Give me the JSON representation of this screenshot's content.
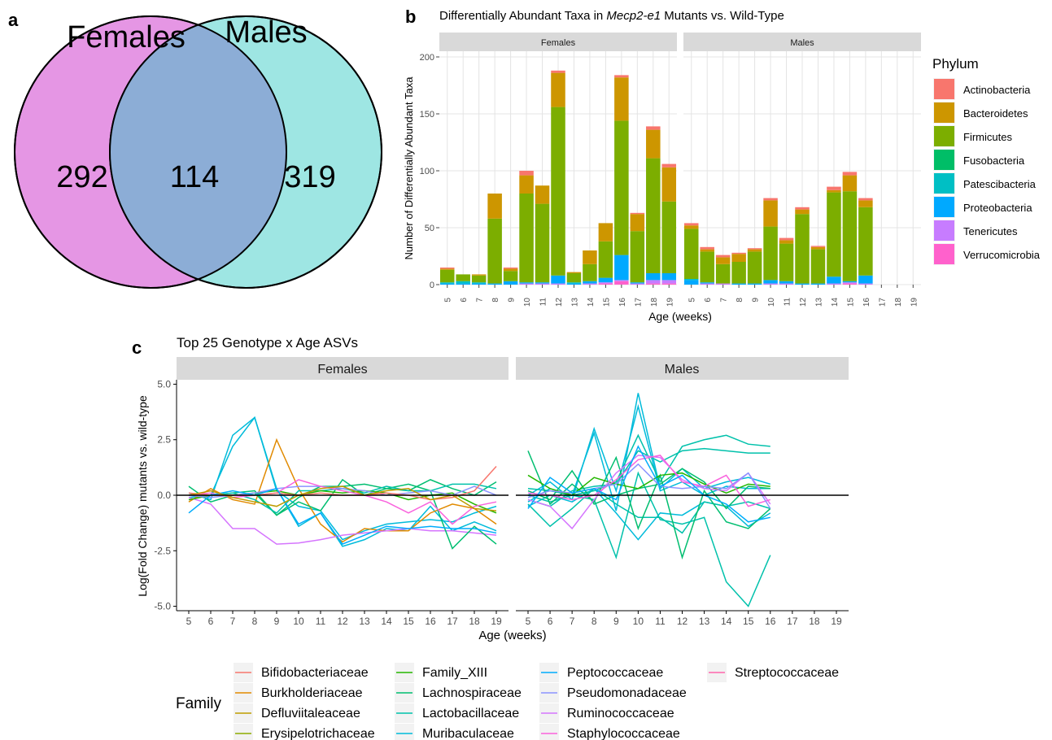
{
  "panel_labels": {
    "a": "a",
    "b": "b",
    "c": "c"
  },
  "colors": {
    "females_circle": "#e596e4",
    "males_circle": "#9ee6e3",
    "overlap": "#8cadd6",
    "strip_bg": "#d9d9d9",
    "grid": "#dedede",
    "Actinobacteria": "#f8766d",
    "Bacteroidetes": "#cd9600",
    "Firmicutes": "#7cae00",
    "Fusobacteria": "#00be67",
    "Patescibacteria": "#00bfc4",
    "Proteobacteria": "#00a9ff",
    "Tenericutes": "#c77cff",
    "Verrucomicrobia": "#ff61cc",
    "Bifidobacteriaceae": "#f8766d",
    "Burkholderiaceae": "#e18a00",
    "Defluviitaleaceae": "#be9c00",
    "Erysipelotrichaceae": "#8cab00",
    "Family_XIII": "#24b700",
    "Lachnospiraceae": "#00be70",
    "Lactobacillaceae": "#00c1ab",
    "Muribaculaceae": "#00bbda",
    "Peptococcaceae": "#00acfc",
    "Pseudomonadaceae": "#8b93ff",
    "Ruminococcaceae": "#d575fe",
    "Staphylococcaceae": "#f962dd",
    "Streptococcaceae": "#ff65ac"
  },
  "venn": {
    "females_label": "Females",
    "males_label": "Males",
    "females_only": "292",
    "overlap": "114",
    "males_only": "319"
  },
  "panel_b": {
    "title_pre": "Differentially Abundant Taxa in ",
    "title_italic": "Mecp2-e1",
    "title_post": " Mutants vs. Wild-Type",
    "ylabel": "Number of Differentially Abundant Taxa",
    "xlabel": "Age (weeks)",
    "facets": [
      "Females",
      "Males"
    ],
    "legend_title": "Phylum",
    "phyla": [
      "Actinobacteria",
      "Bacteroidetes",
      "Firmicutes",
      "Fusobacteria",
      "Patescibacteria",
      "Proteobacteria",
      "Tenericutes",
      "Verrucomicrobia"
    ]
  },
  "panel_c": {
    "title": "Top 25 Genotype x Age ASVs",
    "ylabel": "Log(Fold Change) mutants vs. wild-type",
    "xlabel": "Age (weeks)",
    "facets": [
      "Females",
      "Males"
    ],
    "legend_title": "Family",
    "families": [
      [
        "Bifidobacteriaceae",
        "Burkholderiaceae",
        "Defluviitaleaceae",
        "Erysipelotrichaceae"
      ],
      [
        "Family_XIII",
        "Lachnospiraceae",
        "Lactobacillaceae",
        "Muribaculaceae"
      ],
      [
        "Peptococcaceae",
        "Pseudomonadaceae",
        "Ruminococcaceae",
        "Staphylococcaceae"
      ],
      [
        "Streptococcaceae"
      ]
    ]
  },
  "chart_data": [
    {
      "type": "venn",
      "sets": [
        "Females",
        "Males"
      ],
      "values": {
        "Females only": 292,
        "Both": 114,
        "Males only": 319
      }
    },
    {
      "type": "bar",
      "stacked": true,
      "title": "Differentially Abundant Taxa in Mecp2-e1 Mutants vs. Wild-Type",
      "xlabel": "Age (weeks)",
      "ylabel": "Number of Differentially Abundant Taxa",
      "ylim": [
        0,
        205
      ],
      "yticks": [
        0,
        50,
        100,
        150,
        200
      ],
      "categories": [
        "5",
        "6",
        "7",
        "8",
        "9",
        "10",
        "11",
        "12",
        "13",
        "14",
        "15",
        "16",
        "17",
        "18",
        "19"
      ],
      "legend": "right",
      "facets": {
        "Females": {
          "Actinobacteria": [
            1,
            0,
            0,
            0,
            1,
            4,
            0,
            2,
            0,
            0,
            0,
            2,
            1,
            3,
            3
          ],
          "Bacteroidetes": [
            1,
            0,
            1,
            22,
            2,
            16,
            16,
            30,
            1,
            12,
            16,
            38,
            15,
            25,
            30
          ],
          "Firmicutes": [
            11,
            6,
            6,
            57,
            9,
            78,
            69,
            148,
            8,
            15,
            32,
            118,
            45,
            101,
            63
          ],
          "Fusobacteria": [
            0,
            0,
            0,
            0,
            0,
            0,
            0,
            0,
            0,
            0,
            0,
            0,
            0,
            0,
            0
          ],
          "Patescibacteria": [
            1,
            2,
            1,
            0,
            0,
            0,
            0,
            0,
            1,
            0,
            0,
            0,
            0,
            0,
            0
          ],
          "Proteobacteria": [
            1,
            1,
            1,
            1,
            3,
            1,
            1,
            7,
            1,
            2,
            4,
            22,
            1,
            6,
            6
          ],
          "Tenericutes": [
            0,
            0,
            0,
            0,
            0,
            1,
            1,
            1,
            0,
            1,
            1,
            1,
            1,
            3,
            3
          ],
          "Verrucomicrobia": [
            0,
            0,
            0,
            0,
            0,
            0,
            0,
            0,
            0,
            0,
            1,
            3,
            0,
            1,
            1
          ]
        },
        "Males": {
          "Actinobacteria": [
            2,
            2,
            2,
            1,
            1,
            2,
            2,
            2,
            1,
            3,
            3,
            2,
            0,
            0,
            0
          ],
          "Bacteroidetes": [
            3,
            2,
            6,
            7,
            2,
            23,
            3,
            4,
            2,
            2,
            14,
            6,
            0,
            0,
            0
          ],
          "Firmicutes": [
            44,
            27,
            17,
            19,
            28,
            47,
            33,
            61,
            30,
            74,
            79,
            60,
            0,
            0,
            0
          ],
          "Fusobacteria": [
            0,
            0,
            0,
            0,
            0,
            0,
            0,
            0,
            0,
            0,
            0,
            0,
            0,
            0,
            0
          ],
          "Patescibacteria": [
            1,
            0,
            0,
            0,
            0,
            0,
            0,
            0,
            0,
            0,
            0,
            0,
            0,
            0,
            0
          ],
          "Proteobacteria": [
            4,
            1,
            0,
            1,
            1,
            3,
            2,
            1,
            1,
            6,
            1,
            7,
            0,
            0,
            0
          ],
          "Tenericutes": [
            0,
            1,
            1,
            0,
            0,
            1,
            1,
            0,
            0,
            1,
            1,
            1,
            0,
            0,
            0
          ],
          "Verrucomicrobia": [
            0,
            0,
            0,
            0,
            0,
            0,
            0,
            0,
            0,
            0,
            1,
            0,
            0,
            0,
            0
          ]
        }
      }
    },
    {
      "type": "line",
      "title": "Top 25 Genotype x Age ASVs",
      "xlabel": "Age (weeks)",
      "ylabel": "Log(Fold Change) mutants vs. wild-type",
      "ylim": [
        -5.2,
        5.2
      ],
      "yticks": [
        -5.0,
        -2.5,
        0.0,
        2.5,
        5.0
      ],
      "x": [
        5,
        6,
        7,
        8,
        9,
        10,
        11,
        12,
        13,
        14,
        15,
        16,
        17,
        18,
        19
      ],
      "reference_line": 0,
      "legend": "bottom",
      "facets": {
        "Females": [
          {
            "family": "Muribaculaceae",
            "values": [
              0.1,
              -0.2,
              2.7,
              3.5,
              0.2,
              -0.5,
              -0.7,
              -2.0,
              -1.6,
              -1.3,
              -1.2,
              -1.1,
              -1.2,
              -0.8,
              -0.5
            ]
          },
          {
            "family": "Muribaculaceae",
            "values": [
              -0.1,
              0.0,
              2.2,
              3.5,
              0.3,
              -1.4,
              -0.8,
              -2.3,
              -2.0,
              -1.5,
              -1.6,
              -0.5,
              -1.6,
              -1.2,
              -1.6
            ]
          },
          {
            "family": "Burkholderiaceae",
            "values": [
              -0.3,
              0.3,
              -0.2,
              -0.4,
              2.5,
              0.3,
              -1.3,
              -2.1,
              -1.5,
              -1.6,
              -1.6,
              -0.8,
              -0.4,
              -0.6,
              -1.3
            ]
          },
          {
            "family": "Ruminococcaceae",
            "values": [
              -0.1,
              -0.4,
              -1.5,
              -1.5,
              -2.2,
              -2.15,
              -2.0,
              -1.8,
              -1.7,
              -1.6,
              -1.5,
              -1.6,
              -1.6,
              -1.7,
              -1.8
            ]
          },
          {
            "family": "Lachnospiraceae",
            "values": [
              0.4,
              -0.3,
              0.0,
              0.1,
              -0.9,
              -0.3,
              -0.7,
              0.7,
              0.0,
              0.3,
              0.5,
              0.2,
              -2.4,
              -1.4,
              -2.2
            ]
          },
          {
            "family": "Lachnospiraceae",
            "values": [
              0.0,
              0.0,
              0.1,
              0.2,
              -0.9,
              -0.1,
              0.4,
              0.4,
              0.5,
              0.3,
              0.2,
              0.7,
              0.3,
              0.0,
              0.6
            ]
          },
          {
            "family": "Lactobacillaceae",
            "values": [
              0.0,
              0.0,
              0.1,
              -0.2,
              -0.8,
              0.2,
              0.2,
              0.3,
              0.1,
              0.4,
              0.2,
              0.2,
              0.5,
              0.5,
              0.3
            ]
          },
          {
            "family": "Family_XIII",
            "values": [
              -0.2,
              0.0,
              0.0,
              0.1,
              0.2,
              0.0,
              0.2,
              0.1,
              0.2,
              0.1,
              -0.2,
              0.0,
              0.1,
              -0.4,
              -0.8
            ]
          },
          {
            "family": "Pseudomonadaceae",
            "values": [
              0.0,
              -0.1,
              0.0,
              0.1,
              0.3,
              0.4,
              0.4,
              0.3,
              0.2,
              0.0,
              0.1,
              0.2,
              0.0,
              0.4,
              0.0
            ]
          },
          {
            "family": "Staphylococcaceae",
            "values": [
              0.0,
              0.1,
              -0.1,
              0.0,
              0.1,
              0.7,
              0.4,
              0.2,
              0.0,
              -0.3,
              -0.8,
              -0.3,
              -1.3,
              -0.5,
              -0.3
            ]
          },
          {
            "family": "Bifidobacteriaceae",
            "values": [
              0.1,
              0.0,
              0.0,
              0.0,
              0.1,
              0.0,
              0.1,
              0.0,
              0.0,
              0.1,
              0.0,
              -0.2,
              -0.1,
              0.2,
              1.3
            ]
          },
          {
            "family": "Peptococcaceae",
            "values": [
              -0.8,
              0.0,
              0.2,
              0.0,
              0.3,
              -1.3,
              -0.8,
              -2.2,
              -1.8,
              -1.4,
              -1.5,
              -1.4,
              -1.5,
              -1.5,
              -1.7
            ]
          },
          {
            "family": "Defluviitaleaceae",
            "values": [
              0.0,
              0.2,
              -0.1,
              -0.3,
              -0.5,
              0.0,
              0.3,
              0.4,
              0.0,
              0.2,
              0.3,
              -0.2,
              0.0,
              -0.6,
              -0.7
            ]
          }
        ],
        "Males": [
          {
            "family": "Muribaculaceae",
            "values": [
              -0.3,
              0.3,
              0.0,
              2.8,
              -0.7,
              4.6,
              0.3,
              1.2,
              0.3,
              0.6,
              0.8,
              0.5
            ]
          },
          {
            "family": "Muribaculaceae",
            "values": [
              0.0,
              0.6,
              -0.2,
              3.0,
              0.2,
              4.0,
              0.2,
              0.6,
              0.0,
              0.4,
              0.3,
              0.3
            ]
          },
          {
            "family": "Muribaculaceae",
            "values": [
              -0.5,
              0.0,
              -0.3,
              0.3,
              -0.8,
              -2.0,
              -0.8,
              -0.9,
              -0.3,
              -0.5,
              -1.4,
              -0.8
            ]
          },
          {
            "family": "Lactobacillaceae",
            "values": [
              0.0,
              -0.3,
              0.0,
              0.2,
              0.6,
              2.7,
              0.6,
              2.2,
              2.5,
              2.7,
              2.3,
              2.2
            ]
          },
          {
            "family": "Lactobacillaceae",
            "values": [
              -0.2,
              -0.5,
              0.2,
              0.4,
              0.5,
              2.0,
              1.5,
              2.0,
              2.1,
              2.0,
              1.9,
              1.9
            ]
          },
          {
            "family": "Lactobacillaceae",
            "values": [
              0.3,
              0.2,
              0.0,
              -0.2,
              -2.8,
              1.0,
              -1.1,
              -1.3,
              -1.0,
              -3.9,
              -5.0,
              -2.7
            ]
          },
          {
            "family": "Lactobacillaceae",
            "values": [
              -0.4,
              -1.4,
              -0.6,
              0.3,
              -0.4,
              -1.0,
              -1.0,
              -1.7,
              -0.3,
              -0.5,
              -0.3,
              -0.6
            ]
          },
          {
            "family": "Lachnospiraceae",
            "values": [
              2.0,
              -0.4,
              0.5,
              -0.3,
              1.7,
              -1.5,
              0.9,
              -2.8,
              0.2,
              -1.2,
              -1.5,
              -0.6
            ]
          },
          {
            "family": "Lachnospiraceae",
            "values": [
              0.2,
              -0.2,
              1.1,
              -0.4,
              0.0,
              0.3,
              0.5,
              1.2,
              0.6,
              -0.6,
              0.4,
              0.3
            ]
          },
          {
            "family": "Family_XIII",
            "values": [
              0.9,
              0.3,
              0.0,
              0.8,
              0.5,
              0.3,
              0.9,
              1.0,
              0.5,
              0.1,
              0.5,
              0.4
            ]
          },
          {
            "family": "Ruminococcaceae",
            "values": [
              -0.2,
              -0.5,
              -1.5,
              -0.2,
              1.0,
              1.8,
              1.7,
              0.7,
              0.3,
              0.2,
              1.0,
              -0.4
            ]
          },
          {
            "family": "Staphylococcaceae",
            "values": [
              0.1,
              0.0,
              -0.2,
              0.0,
              0.7,
              1.6,
              1.8,
              0.6,
              0.4,
              0.9,
              -0.5,
              -0.2
            ]
          },
          {
            "family": "Pseudomonadaceae",
            "values": [
              -0.1,
              0.2,
              0.1,
              0.3,
              0.5,
              1.4,
              0.4,
              0.3,
              0.4,
              0.3,
              1.0,
              -0.6
            ]
          },
          {
            "family": "Peptococcaceae",
            "values": [
              -0.6,
              0.8,
              0.1,
              0.3,
              -0.2,
              2.2,
              0.4,
              0.9,
              0.0,
              -0.4,
              -1.2,
              -1.0
            ]
          }
        ]
      }
    }
  ]
}
